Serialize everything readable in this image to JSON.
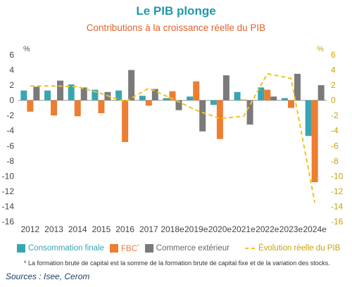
{
  "header": {
    "title": "Le PIB plonge",
    "subtitle": "Contributions à la croissance réelle du PIB"
  },
  "legend": {
    "consommation": "Consommation finale",
    "fbc": "FBC",
    "fbc_marker": "*",
    "commerce": "Commerce extérieur",
    "evolution": "Évolution réelle du PIB"
  },
  "footnote": "* La formation brute de capital est la somme de la formation brute de capital fixe et de la variation des stocks.",
  "sources": "Sources : Isee, Cerom",
  "chart_data": {
    "type": "bar",
    "title": "Contributions à la croissance réelle du PIB",
    "y_unit_left": "%",
    "y_unit_right": "%",
    "ylim": [
      -16,
      6
    ],
    "y_ticks": [
      -16,
      -14,
      -12,
      -10,
      -8,
      -6,
      -4,
      -2,
      0,
      2,
      4,
      6
    ],
    "categories": [
      "2012",
      "2013",
      "2014",
      "2015",
      "2016",
      "2017",
      "2018e",
      "2019e",
      "2020e",
      "2021e",
      "2022e",
      "2023e",
      "2024e"
    ],
    "series": [
      {
        "name": "Consommation finale",
        "type": "bar",
        "color": "#3aa5b2",
        "values": [
          1.3,
          1.3,
          2.1,
          1.4,
          1.3,
          0.6,
          0.3,
          0.5,
          -0.6,
          1.1,
          1.7,
          0.3,
          -4.7
        ]
      },
      {
        "name": "FBC",
        "type": "bar",
        "color": "#ed7d31",
        "values": [
          -1.5,
          -2.0,
          -2.1,
          -1.7,
          -5.5,
          -0.7,
          1.2,
          2.5,
          -5.1,
          0.1,
          1.4,
          -1.0,
          -10.8
        ]
      },
      {
        "name": "Commerce extérieur",
        "type": "bar",
        "color": "#7a7a7a",
        "values": [
          1.8,
          2.6,
          1.7,
          1.1,
          4.0,
          1.5,
          -1.3,
          -4.1,
          3.3,
          -3.2,
          0.5,
          3.5,
          2.0
        ]
      },
      {
        "name": "Évolution réelle du PIB",
        "type": "line",
        "style": "dashed",
        "color": "#f2c418",
        "values": [
          1.9,
          1.9,
          1.8,
          0.9,
          -0.2,
          1.6,
          0.2,
          -1.3,
          -2.4,
          -2.1,
          3.5,
          2.9,
          -13.5
        ]
      }
    ],
    "grid": false,
    "legend_position": "bottom"
  }
}
